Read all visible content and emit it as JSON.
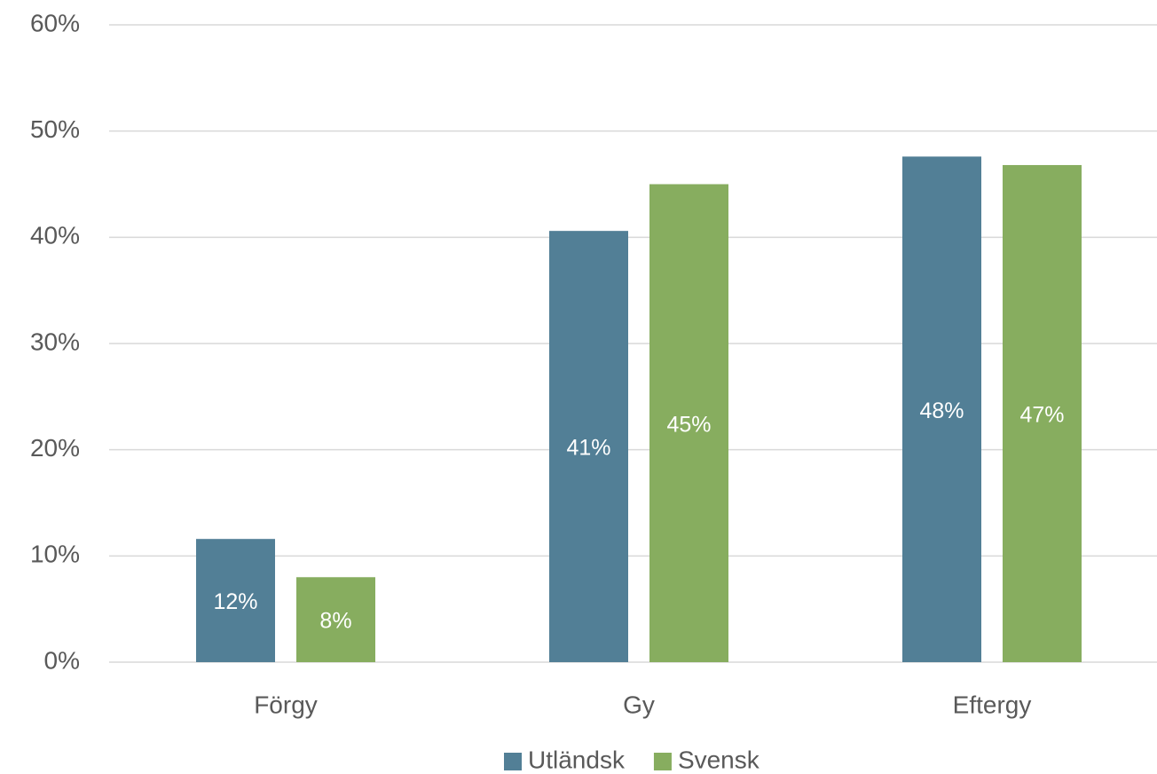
{
  "chart_data": {
    "type": "bar",
    "categories": [
      "Förgy",
      "Gy",
      "Eftergy"
    ],
    "series": [
      {
        "name": "Utländsk",
        "color": "#527f96",
        "values": [
          11.6,
          40.6,
          47.6
        ],
        "value_labels": [
          "12%",
          "41%",
          "48%"
        ]
      },
      {
        "name": "Svensk",
        "color": "#87ad5f",
        "values": [
          8.0,
          45.0,
          46.8
        ],
        "value_labels": [
          "8%",
          "45%",
          "47%"
        ]
      }
    ],
    "ylim": [
      0,
      60
    ],
    "yticks": [
      {
        "value": 0,
        "label": "0%"
      },
      {
        "value": 10,
        "label": "10%"
      },
      {
        "value": 20,
        "label": "20%"
      },
      {
        "value": 30,
        "label": "30%"
      },
      {
        "value": 40,
        "label": "40%"
      },
      {
        "value": 50,
        "label": "50%"
      },
      {
        "value": 60,
        "label": "60%"
      }
    ],
    "grid": true,
    "legend": "bottom"
  }
}
